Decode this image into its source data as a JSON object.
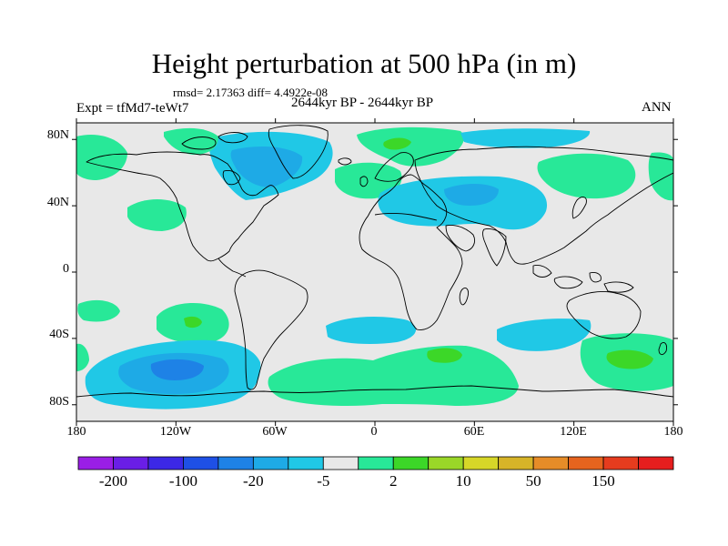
{
  "plot": {
    "title": "Height perturbation at 500 hPa (in m)",
    "stats": "rmsd= 2.17363 diff= 4.4922e-08",
    "experiment": "Expt = tfMd7-teWt7",
    "period": "2644kyr BP - 2644kyr BP",
    "season": "ANN"
  },
  "axes": {
    "lat_labels": [
      "80N",
      "40N",
      "0",
      "40S",
      "80S"
    ],
    "lat_values": [
      80,
      40,
      0,
      -40,
      -80
    ],
    "lon_labels": [
      "180",
      "120W",
      "60W",
      "0",
      "60E",
      "120E",
      "180"
    ],
    "lon_values": [
      -180,
      -120,
      -60,
      0,
      60,
      120,
      180
    ]
  },
  "colorbar": {
    "colors": [
      "#9a1ee6",
      "#6a1ee6",
      "#3c28e6",
      "#1e50e6",
      "#1e82e6",
      "#1eaae6",
      "#20c8e6",
      "#e8e8e8",
      "#28e898",
      "#3cd728",
      "#9ad728",
      "#d7d728",
      "#d7b428",
      "#e68c28",
      "#e6641e",
      "#e63c1e",
      "#e61e1e"
    ],
    "labels": [
      "-200",
      "-100",
      "-20",
      "-5",
      "2",
      "10",
      "50",
      "150"
    ],
    "label_boundaries": [
      1,
      3,
      5,
      7,
      9,
      11,
      13,
      15
    ]
  },
  "field_colors": {
    "background": "#e8e8e8",
    "light_green": "#28e898",
    "green": "#3cd728",
    "light_blue": "#20c8e6",
    "blue": "#1eaae6",
    "mid_blue": "#1e82e6",
    "land_outline": "#000000"
  }
}
